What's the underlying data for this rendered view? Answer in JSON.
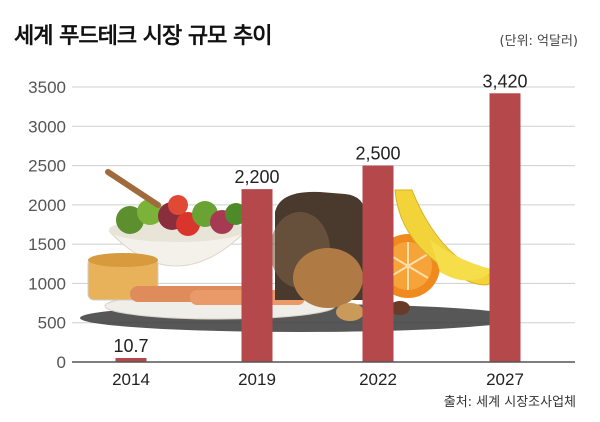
{
  "title": "세계 푸드테크 시장 규모 추이",
  "unit_label": "(단위: 억달러)",
  "source": "출처: 세계 시장조사업체",
  "colors": {
    "bar": "#b5484b",
    "grid": "#cfcfcf",
    "axis": "#555555"
  },
  "chart_data": {
    "type": "bar",
    "categories": [
      "2014",
      "2019",
      "2022",
      "2027"
    ],
    "values": [
      10.7,
      2200,
      2500,
      3420
    ],
    "value_labels": [
      "10.7",
      "2,200",
      "2,500",
      "3,420"
    ],
    "ylim": [
      0,
      3500
    ],
    "yticks": [
      0,
      500,
      1000,
      1500,
      2000,
      2500,
      3000,
      3500
    ],
    "grid": true,
    "background_illustration": "food-illustration"
  }
}
